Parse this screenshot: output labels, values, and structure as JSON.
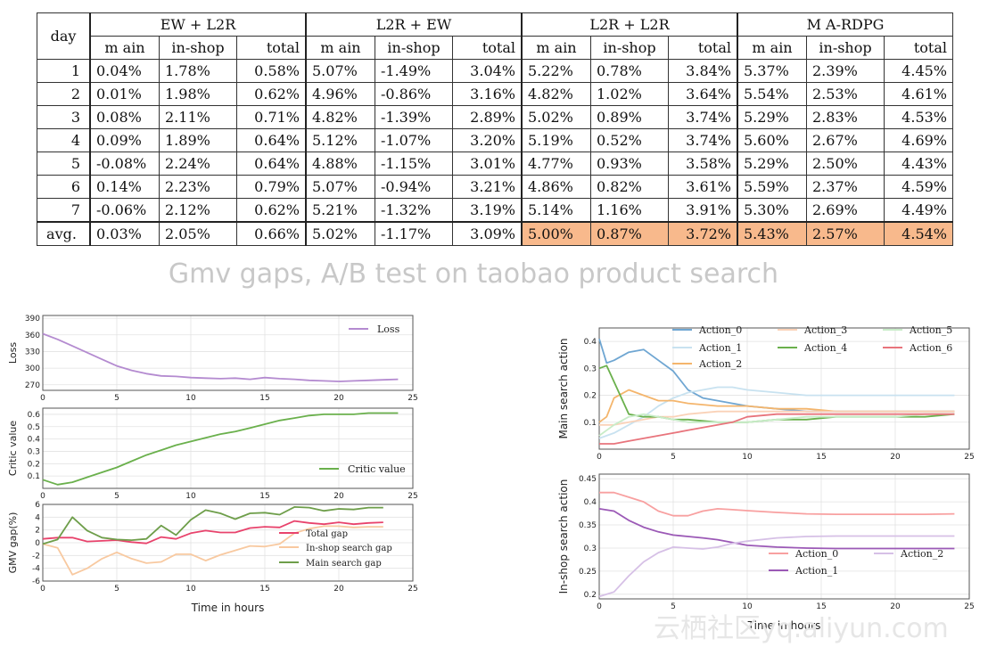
{
  "table": {
    "corner_label": "day",
    "groups": [
      "EW + L2R",
      "L2R + EW",
      "L2R + L2R",
      "M A-RDPG"
    ],
    "subheaders": [
      "m ain",
      "in-shop",
      "total"
    ],
    "rows": [
      {
        "day": "1",
        "cells": [
          "0.04%",
          "1.78%",
          "0.58%",
          "5.07%",
          "-1.49%",
          "3.04%",
          "5.22%",
          "0.78%",
          "3.84%",
          "5.37%",
          "2.39%",
          "4.45%"
        ]
      },
      {
        "day": "2",
        "cells": [
          "0.01%",
          "1.98%",
          "0.62%",
          "4.96%",
          "-0.86%",
          "3.16%",
          "4.82%",
          "1.02%",
          "3.64%",
          "5.54%",
          "2.53%",
          "4.61%"
        ]
      },
      {
        "day": "3",
        "cells": [
          "0.08%",
          "2.11%",
          "0.71%",
          "4.82%",
          "-1.39%",
          "2.89%",
          "5.02%",
          "0.89%",
          "3.74%",
          "5.29%",
          "2.83%",
          "4.53%"
        ]
      },
      {
        "day": "4",
        "cells": [
          "0.09%",
          "1.89%",
          "0.64%",
          "5.12%",
          "-1.07%",
          "3.20%",
          "5.19%",
          "0.52%",
          "3.74%",
          "5.60%",
          "2.67%",
          "4.69%"
        ]
      },
      {
        "day": "5",
        "cells": [
          "-0.08%",
          "2.24%",
          "0.64%",
          "4.88%",
          "-1.15%",
          "3.01%",
          "4.77%",
          "0.93%",
          "3.58%",
          "5.29%",
          "2.50%",
          "4.43%"
        ]
      },
      {
        "day": "6",
        "cells": [
          "0.14%",
          "2.23%",
          "0.79%",
          "5.07%",
          "-0.94%",
          "3.21%",
          "4.86%",
          "0.82%",
          "3.61%",
          "5.59%",
          "2.37%",
          "4.59%"
        ]
      },
      {
        "day": "7",
        "cells": [
          "-0.06%",
          "2.12%",
          "0.62%",
          "5.21%",
          "-1.32%",
          "3.19%",
          "5.14%",
          "1.16%",
          "3.91%",
          "5.30%",
          "2.69%",
          "4.49%"
        ]
      }
    ],
    "avg_row": {
      "day": "avg.",
      "cells": [
        "0.03%",
        "2.05%",
        "0.66%",
        "5.02%",
        "-1.17%",
        "3.09%",
        "5.00%",
        "0.87%",
        "3.72%",
        "5.43%",
        "2.57%",
        "4.54%"
      ]
    },
    "highlight_color": "#f8b98c"
  },
  "caption": "Gmv gaps, A/B test on taobao product search",
  "watermark": "云栖社区yq.aliyun.com",
  "chart_data": [
    {
      "type": "line",
      "title": "",
      "ylabel": "Loss",
      "xlabel": "",
      "xlim": [
        0,
        25
      ],
      "ylim": [
        260,
        395
      ],
      "xticks": [
        0,
        5,
        10,
        15,
        20,
        25
      ],
      "yticks": [
        270,
        300,
        330,
        360,
        390
      ],
      "legend": "top-right",
      "series": [
        {
          "name": "Loss",
          "color": "#b48bd0",
          "x": [
            0,
            1,
            2,
            3,
            4,
            5,
            6,
            7,
            8,
            9,
            10,
            11,
            12,
            13,
            14,
            15,
            16,
            17,
            18,
            19,
            20,
            21,
            22,
            23,
            24
          ],
          "y": [
            362,
            352,
            340,
            328,
            316,
            304,
            296,
            290,
            286,
            285,
            283,
            282,
            281,
            282,
            280,
            283,
            281,
            280,
            278,
            277,
            276,
            277,
            278,
            279,
            280
          ]
        }
      ]
    },
    {
      "type": "line",
      "title": "",
      "ylabel": "Critic value",
      "xlabel": "",
      "xlim": [
        0,
        25
      ],
      "ylim": [
        0,
        0.65
      ],
      "xticks": [
        0,
        5,
        10,
        15,
        20,
        25
      ],
      "yticks": [
        0.1,
        0.2,
        0.3,
        0.4,
        0.5,
        0.6
      ],
      "legend": "bottom-right",
      "series": [
        {
          "name": "Critic value",
          "color": "#6ab04c",
          "x": [
            0,
            1,
            2,
            3,
            4,
            5,
            6,
            7,
            8,
            9,
            10,
            11,
            12,
            13,
            14,
            15,
            16,
            17,
            18,
            19,
            20,
            21,
            22,
            23,
            24
          ],
          "y": [
            0.07,
            0.03,
            0.05,
            0.09,
            0.13,
            0.17,
            0.22,
            0.27,
            0.31,
            0.35,
            0.38,
            0.41,
            0.44,
            0.46,
            0.49,
            0.52,
            0.55,
            0.57,
            0.59,
            0.6,
            0.6,
            0.6,
            0.61,
            0.61,
            0.61
          ]
        }
      ]
    },
    {
      "type": "line",
      "title": "",
      "ylabel": "GMV gap(%)",
      "xlabel": "Time in hours",
      "xlim": [
        0,
        25
      ],
      "ylim": [
        -6,
        6
      ],
      "xticks": [
        0,
        5,
        10,
        15,
        20,
        25
      ],
      "yticks": [
        -6,
        -4,
        -2,
        0,
        2,
        4,
        6
      ],
      "legend": "center-right",
      "series": [
        {
          "name": "Total gap",
          "color": "#e8436c",
          "x": [
            0,
            1,
            2,
            3,
            4,
            5,
            6,
            7,
            8,
            9,
            10,
            11,
            12,
            13,
            14,
            15,
            16,
            17,
            18,
            19,
            20,
            21,
            22,
            23
          ],
          "y": [
            0.6,
            0.8,
            0.8,
            0.2,
            0.3,
            0.4,
            0.1,
            -0.1,
            0.9,
            0.6,
            1.5,
            1.9,
            1.6,
            1.6,
            2.3,
            2.5,
            2.4,
            3.4,
            3.1,
            2.9,
            3.2,
            2.9,
            3.1,
            3.2
          ]
        },
        {
          "name": "In-shop search gap",
          "color": "#f8c9a0",
          "x": [
            0,
            1,
            2,
            3,
            4,
            5,
            6,
            7,
            8,
            9,
            10,
            11,
            12,
            13,
            14,
            15,
            16,
            17,
            18,
            19,
            20,
            21,
            22,
            23
          ],
          "y": [
            -0.2,
            -0.8,
            -5.0,
            -4.0,
            -2.5,
            -1.5,
            -2.5,
            -3.2,
            -3.0,
            -1.8,
            -1.8,
            -2.8,
            -1.9,
            -1.2,
            -0.5,
            -0.6,
            -0.2,
            1.5,
            2.2,
            2.6,
            2.6,
            2.4,
            2.5,
            2.5
          ]
        },
        {
          "name": "Main search gap",
          "color": "#6e9e4a",
          "x": [
            0,
            1,
            2,
            3,
            4,
            5,
            6,
            7,
            8,
            9,
            10,
            11,
            12,
            13,
            14,
            15,
            16,
            17,
            18,
            19,
            20,
            21,
            22,
            23
          ],
          "y": [
            -0.2,
            0.5,
            4.0,
            1.9,
            0.8,
            0.5,
            0.4,
            0.6,
            2.7,
            1.2,
            3.6,
            5.1,
            4.6,
            3.7,
            4.6,
            4.7,
            4.4,
            5.6,
            5.5,
            5.0,
            5.3,
            5.2,
            5.5,
            5.5
          ]
        }
      ]
    },
    {
      "type": "line",
      "title": "",
      "ylabel": "Main search action",
      "xlabel": "",
      "xlim": [
        0,
        25
      ],
      "ylim": [
        0,
        0.45
      ],
      "xticks": [
        0,
        5,
        10,
        15,
        20,
        25
      ],
      "yticks": [
        0.1,
        0.2,
        0.3,
        0.4
      ],
      "legend": "top",
      "series": [
        {
          "name": "Action_0",
          "color": "#6fa6d2",
          "x": [
            0,
            0.5,
            1,
            2,
            3,
            4,
            5,
            6,
            7,
            8,
            9,
            10,
            12,
            14,
            16,
            18,
            20,
            22,
            24
          ],
          "y": [
            0.41,
            0.32,
            0.33,
            0.36,
            0.37,
            0.33,
            0.29,
            0.22,
            0.19,
            0.18,
            0.17,
            0.16,
            0.15,
            0.14,
            0.14,
            0.14,
            0.14,
            0.14,
            0.14
          ]
        },
        {
          "name": "Action_1",
          "color": "#c8e2f0",
          "x": [
            0,
            1,
            2,
            3,
            4,
            5,
            6,
            7,
            8,
            9,
            10,
            12,
            14,
            16,
            18,
            20,
            22,
            24
          ],
          "y": [
            0.04,
            0.06,
            0.09,
            0.12,
            0.16,
            0.19,
            0.21,
            0.22,
            0.23,
            0.23,
            0.22,
            0.21,
            0.2,
            0.2,
            0.2,
            0.2,
            0.2,
            0.2
          ]
        },
        {
          "name": "Action_2",
          "color": "#f4b56c",
          "x": [
            0,
            0.5,
            1,
            2,
            3,
            4,
            5,
            6,
            8,
            10,
            12,
            14,
            16,
            18,
            20,
            22,
            24
          ],
          "y": [
            0.1,
            0.12,
            0.19,
            0.22,
            0.2,
            0.18,
            0.18,
            0.17,
            0.16,
            0.16,
            0.15,
            0.15,
            0.14,
            0.14,
            0.14,
            0.14,
            0.14
          ]
        },
        {
          "name": "Action_3",
          "color": "#fad2b8",
          "x": [
            0,
            1,
            2,
            3,
            4,
            5,
            6,
            8,
            10,
            12,
            14,
            16,
            18,
            20,
            22,
            24
          ],
          "y": [
            0.09,
            0.09,
            0.1,
            0.11,
            0.12,
            0.12,
            0.13,
            0.14,
            0.14,
            0.14,
            0.14,
            0.14,
            0.14,
            0.14,
            0.14,
            0.14
          ]
        },
        {
          "name": "Action_4",
          "color": "#6ab04c",
          "x": [
            0,
            0.5,
            1,
            2,
            3,
            4,
            5,
            6,
            8,
            10,
            12,
            14,
            16,
            18,
            20,
            22,
            24
          ],
          "y": [
            0.3,
            0.31,
            0.25,
            0.13,
            0.12,
            0.12,
            0.11,
            0.11,
            0.1,
            0.1,
            0.11,
            0.11,
            0.12,
            0.12,
            0.12,
            0.12,
            0.13
          ]
        },
        {
          "name": "Action_5",
          "color": "#c8ecc8",
          "x": [
            0,
            1,
            2,
            3,
            4,
            5,
            6,
            8,
            10,
            12,
            14,
            16,
            18,
            20,
            22,
            24
          ],
          "y": [
            0.05,
            0.09,
            0.12,
            0.13,
            0.12,
            0.11,
            0.1,
            0.1,
            0.1,
            0.11,
            0.12,
            0.12,
            0.12,
            0.12,
            0.13,
            0.13
          ]
        },
        {
          "name": "Action_6",
          "color": "#e8747c",
          "x": [
            0,
            1,
            2,
            3,
            4,
            5,
            6,
            7,
            8,
            9,
            10,
            12,
            14,
            16,
            18,
            20,
            22,
            24
          ],
          "y": [
            0.02,
            0.02,
            0.03,
            0.04,
            0.05,
            0.06,
            0.07,
            0.08,
            0.09,
            0.1,
            0.12,
            0.13,
            0.13,
            0.13,
            0.13,
            0.13,
            0.13,
            0.13
          ]
        }
      ]
    },
    {
      "type": "line",
      "title": "",
      "ylabel": "In-shop search action",
      "xlabel": "Time in hours",
      "xlim": [
        0,
        25
      ],
      "ylim": [
        0.19,
        0.46
      ],
      "xticks": [
        0,
        5,
        10,
        15,
        20,
        25
      ],
      "yticks": [
        0.2,
        0.25,
        0.3,
        0.35,
        0.4,
        0.45
      ],
      "legend": "bottom",
      "series": [
        {
          "name": "Action_0",
          "color": "#f8a0a0",
          "x": [
            0,
            1,
            2,
            3,
            4,
            5,
            6,
            7,
            8,
            9,
            10,
            12,
            14,
            16,
            18,
            20,
            22,
            24
          ],
          "y": [
            0.42,
            0.42,
            0.41,
            0.4,
            0.38,
            0.37,
            0.37,
            0.38,
            0.385,
            0.383,
            0.381,
            0.377,
            0.374,
            0.373,
            0.373,
            0.373,
            0.373,
            0.374
          ]
        },
        {
          "name": "Action_1",
          "color": "#9b59b6",
          "x": [
            0,
            1,
            2,
            3,
            4,
            5,
            6,
            7,
            8,
            9,
            10,
            12,
            14,
            16,
            18,
            20,
            22,
            24
          ],
          "y": [
            0.385,
            0.38,
            0.36,
            0.345,
            0.335,
            0.328,
            0.325,
            0.322,
            0.318,
            0.312,
            0.306,
            0.302,
            0.3,
            0.299,
            0.299,
            0.299,
            0.299,
            0.299
          ]
        },
        {
          "name": "Action_2",
          "color": "#d6c0e6",
          "x": [
            0,
            1,
            2,
            3,
            4,
            5,
            6,
            7,
            8,
            9,
            10,
            12,
            14,
            16,
            18,
            20,
            22,
            24
          ],
          "y": [
            0.195,
            0.205,
            0.24,
            0.27,
            0.29,
            0.302,
            0.3,
            0.298,
            0.302,
            0.31,
            0.315,
            0.322,
            0.325,
            0.326,
            0.326,
            0.326,
            0.326,
            0.326
          ]
        }
      ]
    }
  ]
}
